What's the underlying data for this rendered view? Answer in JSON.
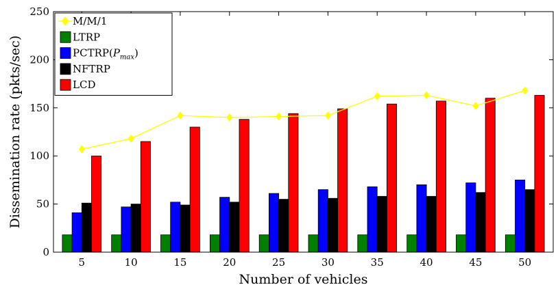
{
  "chart_data": {
    "type": "bar",
    "xlabel": "Number of vehicles",
    "ylabel": "Dissemination rate (pkts/sec)",
    "ylim": [
      0,
      250
    ],
    "yticks": [
      0,
      50,
      100,
      150,
      200,
      250
    ],
    "categories": [
      "5",
      "10",
      "15",
      "20",
      "25",
      "30",
      "35",
      "40",
      "45",
      "50"
    ],
    "grid": false,
    "legend_position": "top-left",
    "series": [
      {
        "name": "LTRP",
        "kind": "bar",
        "color": "#008000",
        "values": [
          18,
          18,
          18,
          18,
          18,
          18,
          18,
          18,
          18,
          18
        ]
      },
      {
        "name": "PCTRP(P_max)",
        "name_main": "PCTRP(",
        "name_var": "P",
        "name_sub": "max",
        "name_close": ")",
        "kind": "bar",
        "color": "#0000ff",
        "values": [
          41,
          47,
          52,
          57,
          61,
          65,
          68,
          70,
          72,
          75
        ]
      },
      {
        "name": "NFTRP",
        "kind": "bar",
        "color": "#000000",
        "values": [
          51,
          50,
          49,
          52,
          55,
          56,
          58,
          58,
          62,
          65
        ]
      },
      {
        "name": "LCD",
        "kind": "bar",
        "color": "#ff0000",
        "values": [
          100,
          115,
          130,
          138,
          144,
          149,
          154,
          157,
          160,
          163
        ]
      },
      {
        "name": "M/M/1",
        "kind": "line",
        "color": "#ffff00",
        "marker": "diamond",
        "values": [
          107,
          118,
          142,
          140,
          141,
          142,
          162,
          163,
          152,
          168
        ]
      }
    ]
  }
}
